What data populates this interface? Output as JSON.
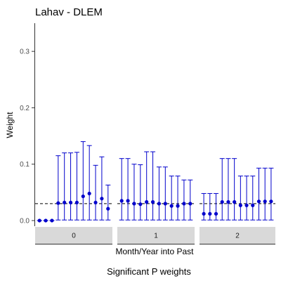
{
  "chart_data": {
    "type": "scatter",
    "title": "Lahav - DLEM",
    "xlabel": "Month/Year into Past",
    "ylabel": "Weight",
    "caption": "Significant P weights",
    "ylim": [
      -0.01,
      0.35
    ],
    "yticks": [
      "0.0",
      "0.1",
      "0.2",
      "0.3"
    ],
    "reference_line": 0.03,
    "grid": false,
    "colors": {
      "point": "#0000cc",
      "errorbar": "#0000cc",
      "reference": "#000000",
      "strip": "#d9d9d9"
    },
    "panels": [
      {
        "label": "0",
        "points": [
          {
            "value": 0.0,
            "lower": 0.0,
            "upper": 0.0
          },
          {
            "value": 0.0,
            "lower": 0.0,
            "upper": 0.0
          },
          {
            "value": 0.0,
            "lower": 0.0,
            "upper": 0.0
          },
          {
            "value": 0.031,
            "lower": 0.001,
            "upper": 0.115
          },
          {
            "value": 0.032,
            "lower": 0.001,
            "upper": 0.12
          },
          {
            "value": 0.032,
            "lower": 0.001,
            "upper": 0.12
          },
          {
            "value": 0.032,
            "lower": 0.001,
            "upper": 0.121
          },
          {
            "value": 0.043,
            "lower": 0.001,
            "upper": 0.14
          },
          {
            "value": 0.048,
            "lower": 0.001,
            "upper": 0.133
          },
          {
            "value": 0.032,
            "lower": 0.001,
            "upper": 0.098
          },
          {
            "value": 0.039,
            "lower": 0.001,
            "upper": 0.113
          },
          {
            "value": 0.021,
            "lower": 0.001,
            "upper": 0.063
          }
        ]
      },
      {
        "label": "1",
        "points": [
          {
            "value": 0.035,
            "lower": 0.001,
            "upper": 0.11
          },
          {
            "value": 0.035,
            "lower": 0.001,
            "upper": 0.11
          },
          {
            "value": 0.03,
            "lower": 0.001,
            "upper": 0.1
          },
          {
            "value": 0.029,
            "lower": 0.001,
            "upper": 0.099
          },
          {
            "value": 0.033,
            "lower": 0.001,
            "upper": 0.122
          },
          {
            "value": 0.033,
            "lower": 0.001,
            "upper": 0.122
          },
          {
            "value": 0.03,
            "lower": 0.001,
            "upper": 0.095
          },
          {
            "value": 0.03,
            "lower": 0.001,
            "upper": 0.095
          },
          {
            "value": 0.026,
            "lower": 0.001,
            "upper": 0.079
          },
          {
            "value": 0.026,
            "lower": 0.001,
            "upper": 0.079
          },
          {
            "value": 0.03,
            "lower": 0.001,
            "upper": 0.072
          },
          {
            "value": 0.03,
            "lower": 0.001,
            "upper": 0.072
          }
        ]
      },
      {
        "label": "2",
        "points": [
          {
            "value": 0.012,
            "lower": 0.001,
            "upper": 0.048
          },
          {
            "value": 0.012,
            "lower": 0.001,
            "upper": 0.048
          },
          {
            "value": 0.012,
            "lower": 0.001,
            "upper": 0.048
          },
          {
            "value": 0.033,
            "lower": 0.001,
            "upper": 0.11
          },
          {
            "value": 0.033,
            "lower": 0.001,
            "upper": 0.11
          },
          {
            "value": 0.033,
            "lower": 0.001,
            "upper": 0.11
          },
          {
            "value": 0.027,
            "lower": 0.001,
            "upper": 0.079
          },
          {
            "value": 0.027,
            "lower": 0.001,
            "upper": 0.079
          },
          {
            "value": 0.027,
            "lower": 0.001,
            "upper": 0.079
          },
          {
            "value": 0.034,
            "lower": 0.001,
            "upper": 0.093
          },
          {
            "value": 0.034,
            "lower": 0.001,
            "upper": 0.093
          },
          {
            "value": 0.034,
            "lower": 0.001,
            "upper": 0.093
          }
        ]
      }
    ]
  }
}
